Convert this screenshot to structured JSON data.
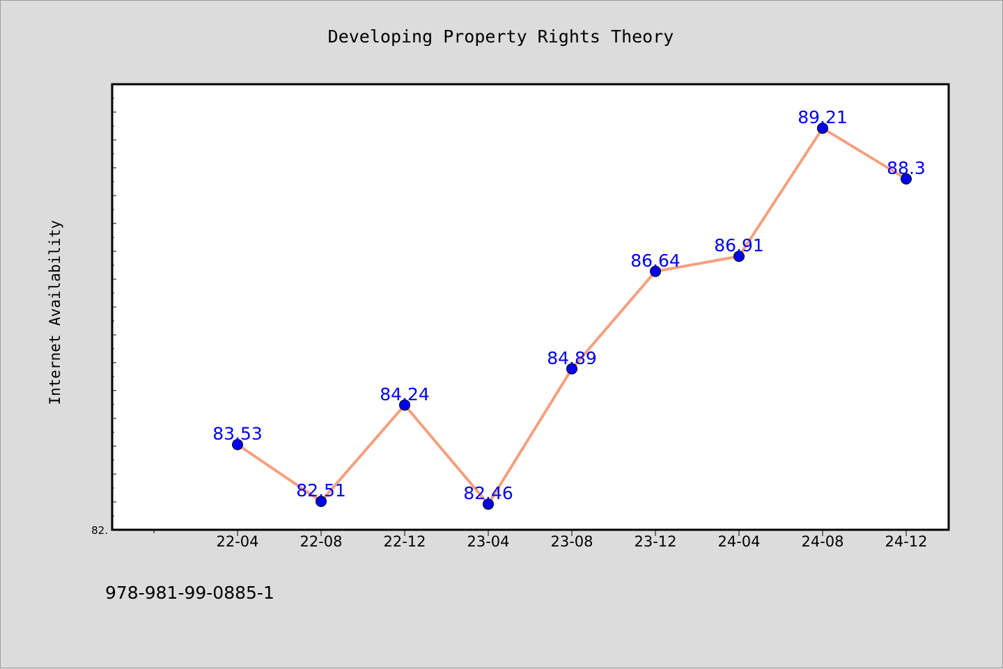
{
  "chart_data": {
    "type": "line",
    "title": "Developing Property Rights Theory",
    "ylabel": "Internet Availability",
    "xlabel": "",
    "categories": [
      "22-04",
      "22-08",
      "22-12",
      "23-04",
      "23-08",
      "23-12",
      "24-04",
      "24-08",
      "24-12"
    ],
    "series": [
      {
        "values": [
          83.53,
          82.51,
          84.24,
          82.46,
          84.89,
          86.64,
          86.91,
          89.21,
          88.3
        ]
      }
    ],
    "data_labels": [
      "83.53",
      "82.51",
      "84.24",
      "82.46",
      "84.89",
      "86.64",
      "86.91",
      "89.21",
      "88.3"
    ],
    "ylim": [
      82.0,
      90.0
    ],
    "y_tick_label": "82.",
    "grid": false,
    "colors": {
      "line": "#f4a07e",
      "marker": "#0000ee",
      "marker_edge": "#000000",
      "label": "#0000ee"
    }
  },
  "footer": {
    "code": "978-981-99-0885-1"
  }
}
